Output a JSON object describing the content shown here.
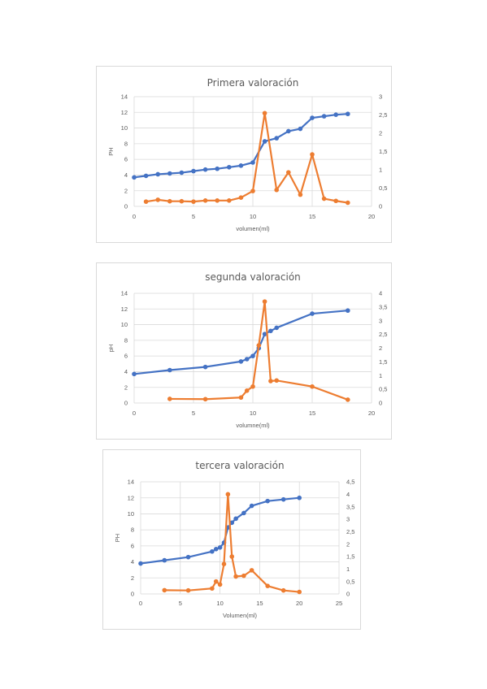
{
  "colors": {
    "series_ph": "#4472C4",
    "series_deriv": "#ED7D31",
    "grid": "#d9d9d9",
    "text": "#595959"
  },
  "chart_data": [
    {
      "type": "line",
      "title": "Primera valoración",
      "xlabel": "volumen(ml)",
      "ylabel": "PH",
      "xlim": [
        0,
        20
      ],
      "xticks": [
        0,
        5,
        10,
        15,
        20
      ],
      "ylim": [
        0,
        14
      ],
      "yticks": [
        0,
        2,
        4,
        6,
        8,
        10,
        12,
        14
      ],
      "y2lim": [
        0,
        3
      ],
      "y2ticks": [
        0,
        0.5,
        1,
        1.5,
        2,
        2.5,
        3
      ],
      "y2ticklabels": [
        "0",
        "0,5",
        "1",
        "1,5",
        "2",
        "2,5",
        "3"
      ],
      "grid": true,
      "series": [
        {
          "axis": "left",
          "x": [
            0,
            1,
            2,
            3,
            4,
            5,
            6,
            7,
            8,
            9,
            10,
            11,
            12,
            13,
            14,
            15,
            16,
            17,
            18
          ],
          "values": [
            3.7,
            3.9,
            4.1,
            4.2,
            4.3,
            4.5,
            4.7,
            4.8,
            5.0,
            5.2,
            5.6,
            8.3,
            8.7,
            9.6,
            9.9,
            11.3,
            11.5,
            11.7,
            11.8
          ]
        },
        {
          "axis": "right",
          "x": [
            1,
            2,
            3,
            4,
            5,
            6,
            7,
            8,
            9,
            10,
            11,
            12,
            13,
            14,
            15,
            16,
            17,
            18
          ],
          "values": [
            0.13,
            0.18,
            0.14,
            0.14,
            0.13,
            0.16,
            0.16,
            0.16,
            0.24,
            0.42,
            2.55,
            0.45,
            0.93,
            0.32,
            1.42,
            0.21,
            0.15,
            0.1
          ]
        }
      ]
    },
    {
      "type": "line",
      "title": "segunda valoración",
      "xlabel": "volumne(ml)",
      "ylabel": "pH",
      "xlim": [
        0,
        20
      ],
      "xticks": [
        0,
        5,
        10,
        15,
        20
      ],
      "ylim": [
        0,
        14
      ],
      "yticks": [
        0,
        2,
        4,
        6,
        8,
        10,
        12,
        14
      ],
      "y2lim": [
        0,
        4
      ],
      "y2ticks": [
        0,
        0.5,
        1,
        1.5,
        2,
        2.5,
        3,
        3.5,
        4
      ],
      "y2ticklabels": [
        "0",
        "0,5",
        "1",
        "1,5",
        "2",
        "2,5",
        "3",
        "3,5",
        "4"
      ],
      "grid": true,
      "series": [
        {
          "axis": "left",
          "x": [
            0,
            3,
            6,
            9,
            9.5,
            10,
            10.5,
            11,
            11.5,
            12,
            15,
            18
          ],
          "values": [
            3.7,
            4.2,
            4.6,
            5.3,
            5.6,
            6.0,
            7.0,
            8.8,
            9.2,
            9.6,
            11.4,
            11.8
          ]
        },
        {
          "axis": "right",
          "x": [
            3,
            6,
            9,
            9.5,
            10,
            10.5,
            11,
            11.5,
            12,
            15,
            18
          ],
          "values": [
            0.15,
            0.14,
            0.2,
            0.45,
            0.6,
            2.1,
            3.7,
            0.8,
            0.82,
            0.6,
            0.12
          ]
        }
      ]
    },
    {
      "type": "line",
      "title": "tercera valoración",
      "xlabel": "Volumen(ml)",
      "ylabel": "PH",
      "xlim": [
        0,
        25
      ],
      "xticks": [
        0,
        5,
        10,
        15,
        20,
        25
      ],
      "ylim": [
        0,
        14
      ],
      "yticks": [
        0,
        2,
        4,
        6,
        8,
        10,
        12,
        14
      ],
      "y2lim": [
        0,
        4.5
      ],
      "y2ticks": [
        0,
        0.5,
        1,
        1.5,
        2,
        2.5,
        3,
        3.5,
        4,
        4.5
      ],
      "y2ticklabels": [
        "0",
        "0,5",
        "1",
        "1,5",
        "2",
        "2,5",
        "3",
        "3,5",
        "4",
        "4,5"
      ],
      "grid": true,
      "series": [
        {
          "axis": "left",
          "x": [
            0,
            3,
            6,
            9,
            9.5,
            10,
            10.5,
            11,
            11.5,
            12,
            13,
            14,
            16,
            18,
            20
          ],
          "values": [
            3.8,
            4.2,
            4.6,
            5.3,
            5.6,
            5.8,
            6.4,
            8.3,
            8.9,
            9.4,
            10.1,
            11.0,
            11.6,
            11.8,
            12.0
          ]
        },
        {
          "axis": "right",
          "x": [
            3,
            6,
            9,
            9.5,
            10,
            10.5,
            11,
            11.5,
            12,
            13,
            14,
            16,
            18,
            20
          ],
          "values": [
            0.15,
            0.14,
            0.22,
            0.5,
            0.38,
            1.2,
            4.0,
            1.5,
            0.7,
            0.73,
            0.95,
            0.32,
            0.14,
            0.08
          ]
        }
      ]
    }
  ]
}
